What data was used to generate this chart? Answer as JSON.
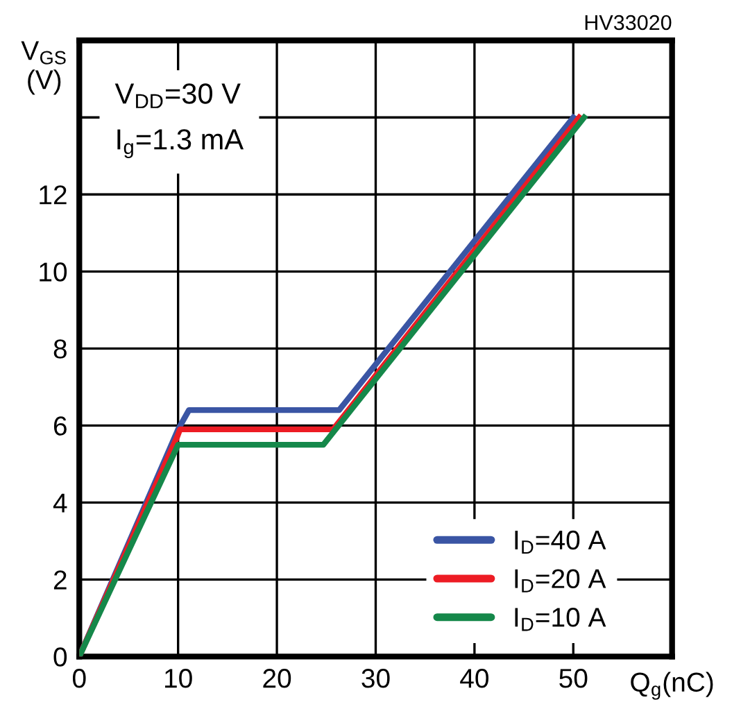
{
  "chart_data": {
    "type": "line",
    "xlabel": "Q$_{g}$(nC)",
    "ylabel": "V$_{GS}$\n(V)",
    "xlim": [
      0,
      60
    ],
    "ylim": [
      0,
      16
    ],
    "xticks": [
      0,
      10,
      20,
      30,
      40,
      50,
      {
        "value": 60,
        "label": null
      }
    ],
    "yticks": [
      0,
      2,
      4,
      6,
      8,
      10,
      12,
      {
        "value": 14,
        "label": null
      },
      {
        "value": 16,
        "label": null
      }
    ],
    "grid": true,
    "legend": "bottom right",
    "line_style": "solid",
    "marker": "none",
    "annotations": [
      "V$_{DD}$=30 V\nI$_{g}$=1.3 mA",
      "HV33020"
    ],
    "series": [
      {
        "name": "I$_{D}$=40 A",
        "color": "#3a55a4",
        "x": [
          0,
          10,
          11.1,
          26.3,
          50.0
        ],
        "values": [
          0,
          5.9,
          6.4,
          6.4,
          14
        ]
      },
      {
        "name": "I$_{D}$=20 A",
        "color": "#ed1c24",
        "x": [
          0,
          9.9,
          10.2,
          25.7,
          50.6
        ],
        "values": [
          0,
          5.7,
          5.9,
          5.9,
          14
        ]
      },
      {
        "name": "I$_{D}$=10 A",
        "color": "#15884a",
        "x": [
          0,
          10.0,
          24.7,
          51.1
        ],
        "values": [
          0,
          5.5,
          5.5,
          14
        ]
      }
    ]
  }
}
